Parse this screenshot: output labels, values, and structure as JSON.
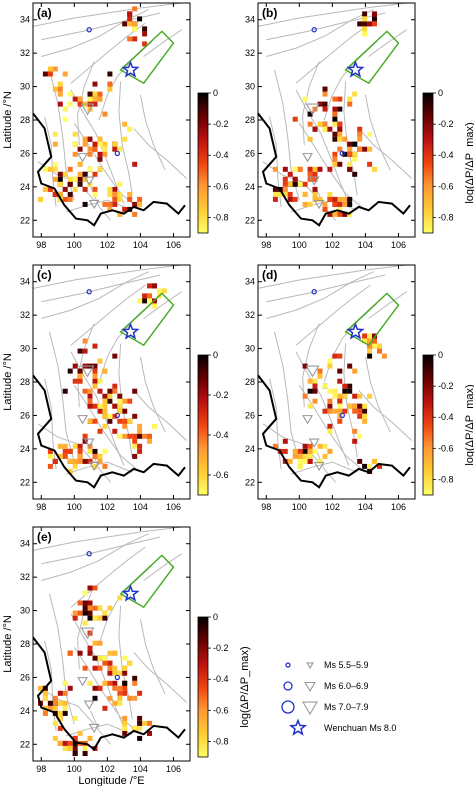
{
  "chart_data": {
    "type": "heatmap",
    "x_ticks": [
      "98",
      "100",
      "102",
      "104",
      "106"
    ],
    "y_ticks": [
      "22",
      "24",
      "26",
      "28",
      "30",
      "32",
      "34"
    ],
    "xlim": [
      97.5,
      107
    ],
    "ylim": [
      21,
      35
    ],
    "xlabel": "Longitude /°E",
    "ylabel": "Latitude /°N",
    "colorbar_label": "log(ΔP/ΔP_max)",
    "colormap": [
      "#ffff66",
      "#ffcc33",
      "#ff9933",
      "#ee4411",
      "#bb1111",
      "#660000",
      "#000000"
    ],
    "panels": [
      {
        "label": "(a)",
        "colorbar_ticks": [
          "0",
          "-0.2",
          "-0.4",
          "-0.6",
          "-0.8"
        ],
        "colorbar_min": -0.9,
        "show_ylabel": true,
        "show_xlabel": false,
        "show_cblabel": false
      },
      {
        "label": "(b)",
        "colorbar_ticks": [
          "0",
          "-0.2",
          "-0.4",
          "-0.6",
          "-0.8"
        ],
        "colorbar_min": -0.9,
        "show_ylabel": false,
        "show_xlabel": false,
        "show_cblabel": true
      },
      {
        "label": "(c)",
        "colorbar_ticks": [
          "0",
          "-0.2",
          "-0.4",
          "-0.6"
        ],
        "colorbar_min": -0.7,
        "show_ylabel": true,
        "show_xlabel": false,
        "show_cblabel": false
      },
      {
        "label": "(d)",
        "colorbar_ticks": [
          "0",
          "-0.2",
          "-0.4",
          "-0.6",
          "-0.8"
        ],
        "colorbar_min": -0.9,
        "show_ylabel": false,
        "show_xlabel": false,
        "show_cblabel": true
      },
      {
        "label": "(e)",
        "colorbar_ticks": [
          "0",
          "-0.2",
          "-0.4",
          "-0.6",
          "-0.8"
        ],
        "colorbar_min": -0.9,
        "show_ylabel": true,
        "show_xlabel": true,
        "show_cblabel": true
      }
    ],
    "epicenter": {
      "lon": 103.4,
      "lat": 31.0
    },
    "events": [
      {
        "lon": 100.8,
        "lat": 28.7,
        "class": "7.0-7.9"
      },
      {
        "lon": 100.5,
        "lat": 25.8,
        "class": "6.0-6.9"
      },
      {
        "lon": 100.9,
        "lat": 24.4,
        "class": "6.0-6.9"
      },
      {
        "lon": 101.2,
        "lat": 23.0,
        "class": "6.0-6.9"
      },
      {
        "lon": 100.9,
        "lat": 33.4,
        "class": "5.5-5.9"
      },
      {
        "lon": 102.6,
        "lat": 26.0,
        "class": "5.5-5.9"
      }
    ],
    "legend": [
      {
        "circle": "small",
        "triangle": "small",
        "text": "Ms 5.5–5.9"
      },
      {
        "circle": "medium",
        "triangle": "medium",
        "text": "Ms 6.0–6.9"
      },
      {
        "circle": "large",
        "triangle": "large",
        "text": "Ms 7.0–7.9"
      },
      {
        "star": true,
        "text": "Wenchuan Ms 8.0"
      }
    ]
  }
}
